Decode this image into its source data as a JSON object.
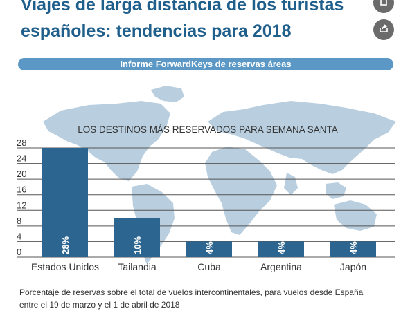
{
  "header": {
    "title_line1": "Viajes de larga distancia de los turistas",
    "title_line2": "españoles: tendencias para 2018"
  },
  "banner": {
    "label": "Informe ForwardKeys de reservas áreas"
  },
  "footnote": {
    "line1": "Porcentaje de reservas sobre el total de vuelos intercontinentales, para vuelos desde España",
    "line2": "entre el 19 de marzo y el 1 de abril de 2018"
  },
  "colors": {
    "title": "#1f5f8b",
    "banner": "#5b98c5",
    "bar": "#2b6590",
    "map": "#b9cfe0",
    "button": "#6b6b6b"
  },
  "icons": [
    "bookmark-icon",
    "share-icon"
  ],
  "chart_data": {
    "type": "bar",
    "title": "LOS DESTINOS MÁS RESERVADOS PARA SEMANA SANTA",
    "categories": [
      "Estados Unidos",
      "Tailandia",
      "Cuba",
      "Argentina",
      "Japón"
    ],
    "values": [
      28,
      10,
      4,
      4,
      4
    ],
    "value_labels": [
      "28%",
      "10%",
      "4%",
      "4%",
      "4%"
    ],
    "ylim": [
      0,
      28
    ],
    "yticks": [
      0,
      4,
      8,
      12,
      16,
      20,
      24,
      28
    ],
    "grid": true,
    "legend": "none"
  }
}
